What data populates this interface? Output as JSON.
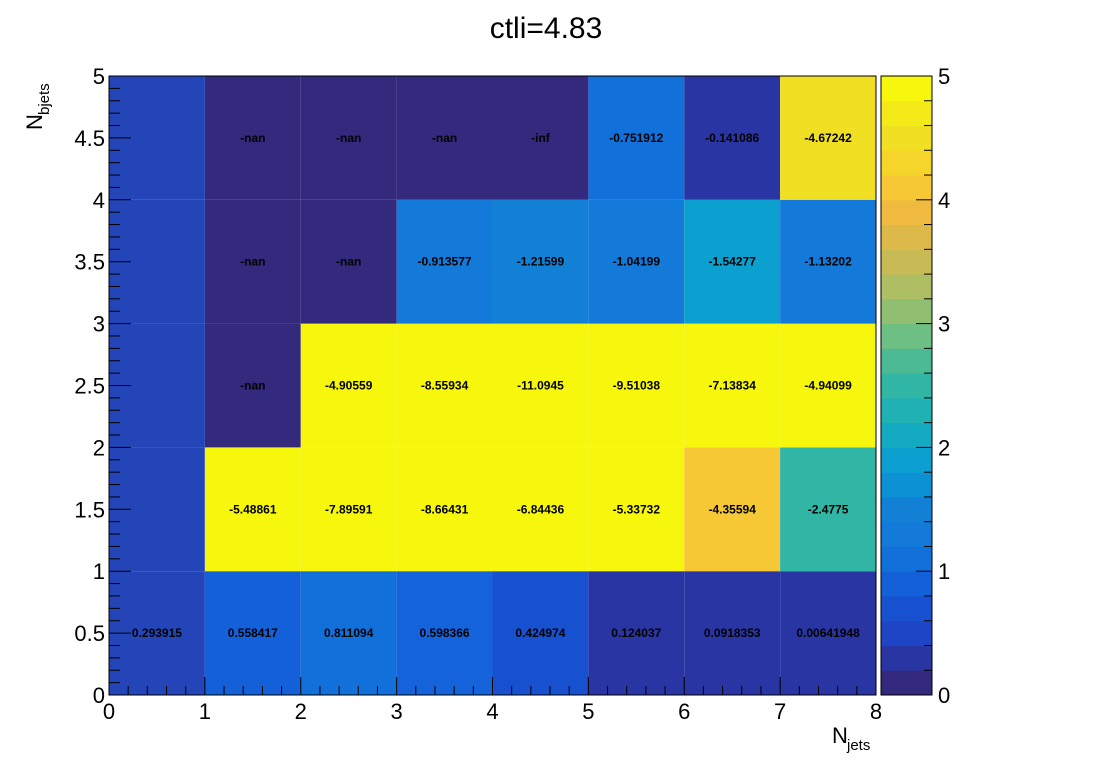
{
  "chart_data": {
    "type": "heatmap",
    "title": "ctli=4.83",
    "xlabel": "N",
    "xlabel_sub": "jets",
    "ylabel": "N",
    "ylabel_sub": "bjets",
    "x_edges": [
      0,
      1,
      2,
      3,
      4,
      5,
      6,
      7,
      8
    ],
    "y_edges": [
      0,
      1,
      2,
      3,
      4,
      5
    ],
    "xlim": [
      0,
      8
    ],
    "ylim": [
      0,
      5
    ],
    "zlim": [
      0,
      5
    ],
    "x_ticks": [
      "0",
      "1",
      "2",
      "3",
      "4",
      "5",
      "6",
      "7",
      "8"
    ],
    "y_ticks": [
      "0",
      "0.5",
      "1",
      "1.5",
      "2",
      "2.5",
      "3",
      "3.5",
      "4",
      "4.5",
      "5"
    ],
    "z_ticks": [
      "0",
      "1",
      "2",
      "3",
      "4",
      "5"
    ],
    "colormap": "parula",
    "cells": [
      {
        "x": 0.5,
        "y": 0.5,
        "z": 0.293915,
        "label": "0.293915"
      },
      {
        "x": 1.5,
        "y": 0.5,
        "z": 0.558417,
        "label": "0.558417"
      },
      {
        "x": 2.5,
        "y": 0.5,
        "z": 0.811094,
        "label": "0.811094"
      },
      {
        "x": 3.5,
        "y": 0.5,
        "z": 0.598366,
        "label": "0.598366"
      },
      {
        "x": 4.5,
        "y": 0.5,
        "z": 0.424974,
        "label": "0.424974"
      },
      {
        "x": 5.5,
        "y": 0.5,
        "z": 0.124037,
        "label": "0.124037"
      },
      {
        "x": 6.5,
        "y": 0.5,
        "z": 0.0918353,
        "label": "0.0918353"
      },
      {
        "x": 7.5,
        "y": 0.5,
        "z": 0.00641948,
        "label": "0.00641948"
      },
      {
        "x": 1.5,
        "y": 1.5,
        "z": -5.48861,
        "label": "-5.48861"
      },
      {
        "x": 2.5,
        "y": 1.5,
        "z": -7.89591,
        "label": "-7.89591"
      },
      {
        "x": 3.5,
        "y": 1.5,
        "z": -8.66431,
        "label": "-8.66431"
      },
      {
        "x": 4.5,
        "y": 1.5,
        "z": -6.84436,
        "label": "-6.84436"
      },
      {
        "x": 5.5,
        "y": 1.5,
        "z": -5.33732,
        "label": "-5.33732"
      },
      {
        "x": 6.5,
        "y": 1.5,
        "z": -4.35594,
        "label": "-4.35594"
      },
      {
        "x": 7.5,
        "y": 1.5,
        "z": -2.4775,
        "label": "-2.4775"
      },
      {
        "x": 1.5,
        "y": 2.5,
        "z": null,
        "label": "-nan"
      },
      {
        "x": 2.5,
        "y": 2.5,
        "z": -4.90559,
        "label": "-4.90559"
      },
      {
        "x": 3.5,
        "y": 2.5,
        "z": -8.55934,
        "label": "-8.55934"
      },
      {
        "x": 4.5,
        "y": 2.5,
        "z": -11.0945,
        "label": "-11.0945"
      },
      {
        "x": 5.5,
        "y": 2.5,
        "z": -9.51038,
        "label": "-9.51038"
      },
      {
        "x": 6.5,
        "y": 2.5,
        "z": -7.13834,
        "label": "-7.13834"
      },
      {
        "x": 7.5,
        "y": 2.5,
        "z": -4.94099,
        "label": "-4.94099"
      },
      {
        "x": 1.5,
        "y": 3.5,
        "z": null,
        "label": "-nan"
      },
      {
        "x": 2.5,
        "y": 3.5,
        "z": null,
        "label": "-nan"
      },
      {
        "x": 3.5,
        "y": 3.5,
        "z": -0.913577,
        "label": "-0.913577"
      },
      {
        "x": 4.5,
        "y": 3.5,
        "z": -1.21599,
        "label": "-1.21599"
      },
      {
        "x": 5.5,
        "y": 3.5,
        "z": -1.04199,
        "label": "-1.04199"
      },
      {
        "x": 6.5,
        "y": 3.5,
        "z": -1.54277,
        "label": "-1.54277"
      },
      {
        "x": 7.5,
        "y": 3.5,
        "z": -1.13202,
        "label": "-1.13202"
      },
      {
        "x": 1.5,
        "y": 4.5,
        "z": null,
        "label": "-nan"
      },
      {
        "x": 2.5,
        "y": 4.5,
        "z": null,
        "label": "-nan"
      },
      {
        "x": 3.5,
        "y": 4.5,
        "z": null,
        "label": "-nan"
      },
      {
        "x": 4.5,
        "y": 4.5,
        "z": null,
        "label": "-inf"
      },
      {
        "x": 5.5,
        "y": 4.5,
        "z": -0.751912,
        "label": "-0.751912"
      },
      {
        "x": 6.5,
        "y": 4.5,
        "z": -0.141086,
        "label": "-0.141086"
      },
      {
        "x": 7.5,
        "y": 4.5,
        "z": -4.67242,
        "label": "-4.67242"
      }
    ],
    "cell_colors": {
      "0.5,0.5": "#2345b8",
      "1.5,0.5": "#1460d9",
      "2.5,0.5": "#1270da",
      "3.5,0.5": "#1563da",
      "4.5,0.5": "#1751d0",
      "5.5,0.5": "#2935a2",
      "6.5,0.5": "#2935a2",
      "7.5,0.5": "#2935a2",
      "0.5,1.5": "#2345b8",
      "0.5,2.5": "#2345b8",
      "0.5,3.5": "#2345b8",
      "0.5,4.5": "#2345b8",
      "1.5,1.5": "#f7f70d",
      "2.5,1.5": "#f7f70d",
      "3.5,1.5": "#f7f70d",
      "4.5,1.5": "#f7f70d",
      "5.5,1.5": "#f7f70d",
      "6.5,1.5": "#f6c835",
      "7.5,1.5": "#31b6a6",
      "1.5,2.5": "#33297d",
      "2.5,2.5": "#f7f70d",
      "3.5,2.5": "#f7f70d",
      "4.5,2.5": "#f7f70d",
      "5.5,2.5": "#f7f70d",
      "6.5,2.5": "#f7f70d",
      "7.5,2.5": "#f7f70d",
      "1.5,3.5": "#33297d",
      "2.5,3.5": "#33297d",
      "3.5,3.5": "#137ad9",
      "4.5,3.5": "#1281d5",
      "5.5,3.5": "#137ad9",
      "6.5,3.5": "#0ca0d0",
      "7.5,3.5": "#137ad9",
      "1.5,4.5": "#33297d",
      "2.5,4.5": "#33297d",
      "3.5,4.5": "#33297d",
      "4.5,4.5": "#33297d",
      "5.5,4.5": "#1270da",
      "6.5,4.5": "#2935a2",
      "7.5,4.5": "#f0df23"
    },
    "palette_colors": [
      "#33297d",
      "#2935a2",
      "#1e45c6",
      "#1751d0",
      "#1460d9",
      "#1270da",
      "#137ad9",
      "#1281d5",
      "#0c91d4",
      "#0ca0d0",
      "#14abc2",
      "#20b1b3",
      "#31b6a6",
      "#4cbb95",
      "#6ebf83",
      "#91bf72",
      "#aebe62",
      "#c8bb55",
      "#ddb94a",
      "#f0ba40",
      "#f6c835",
      "#f6d52a",
      "#f0df23",
      "#f4ea18",
      "#f7f70d"
    ]
  }
}
